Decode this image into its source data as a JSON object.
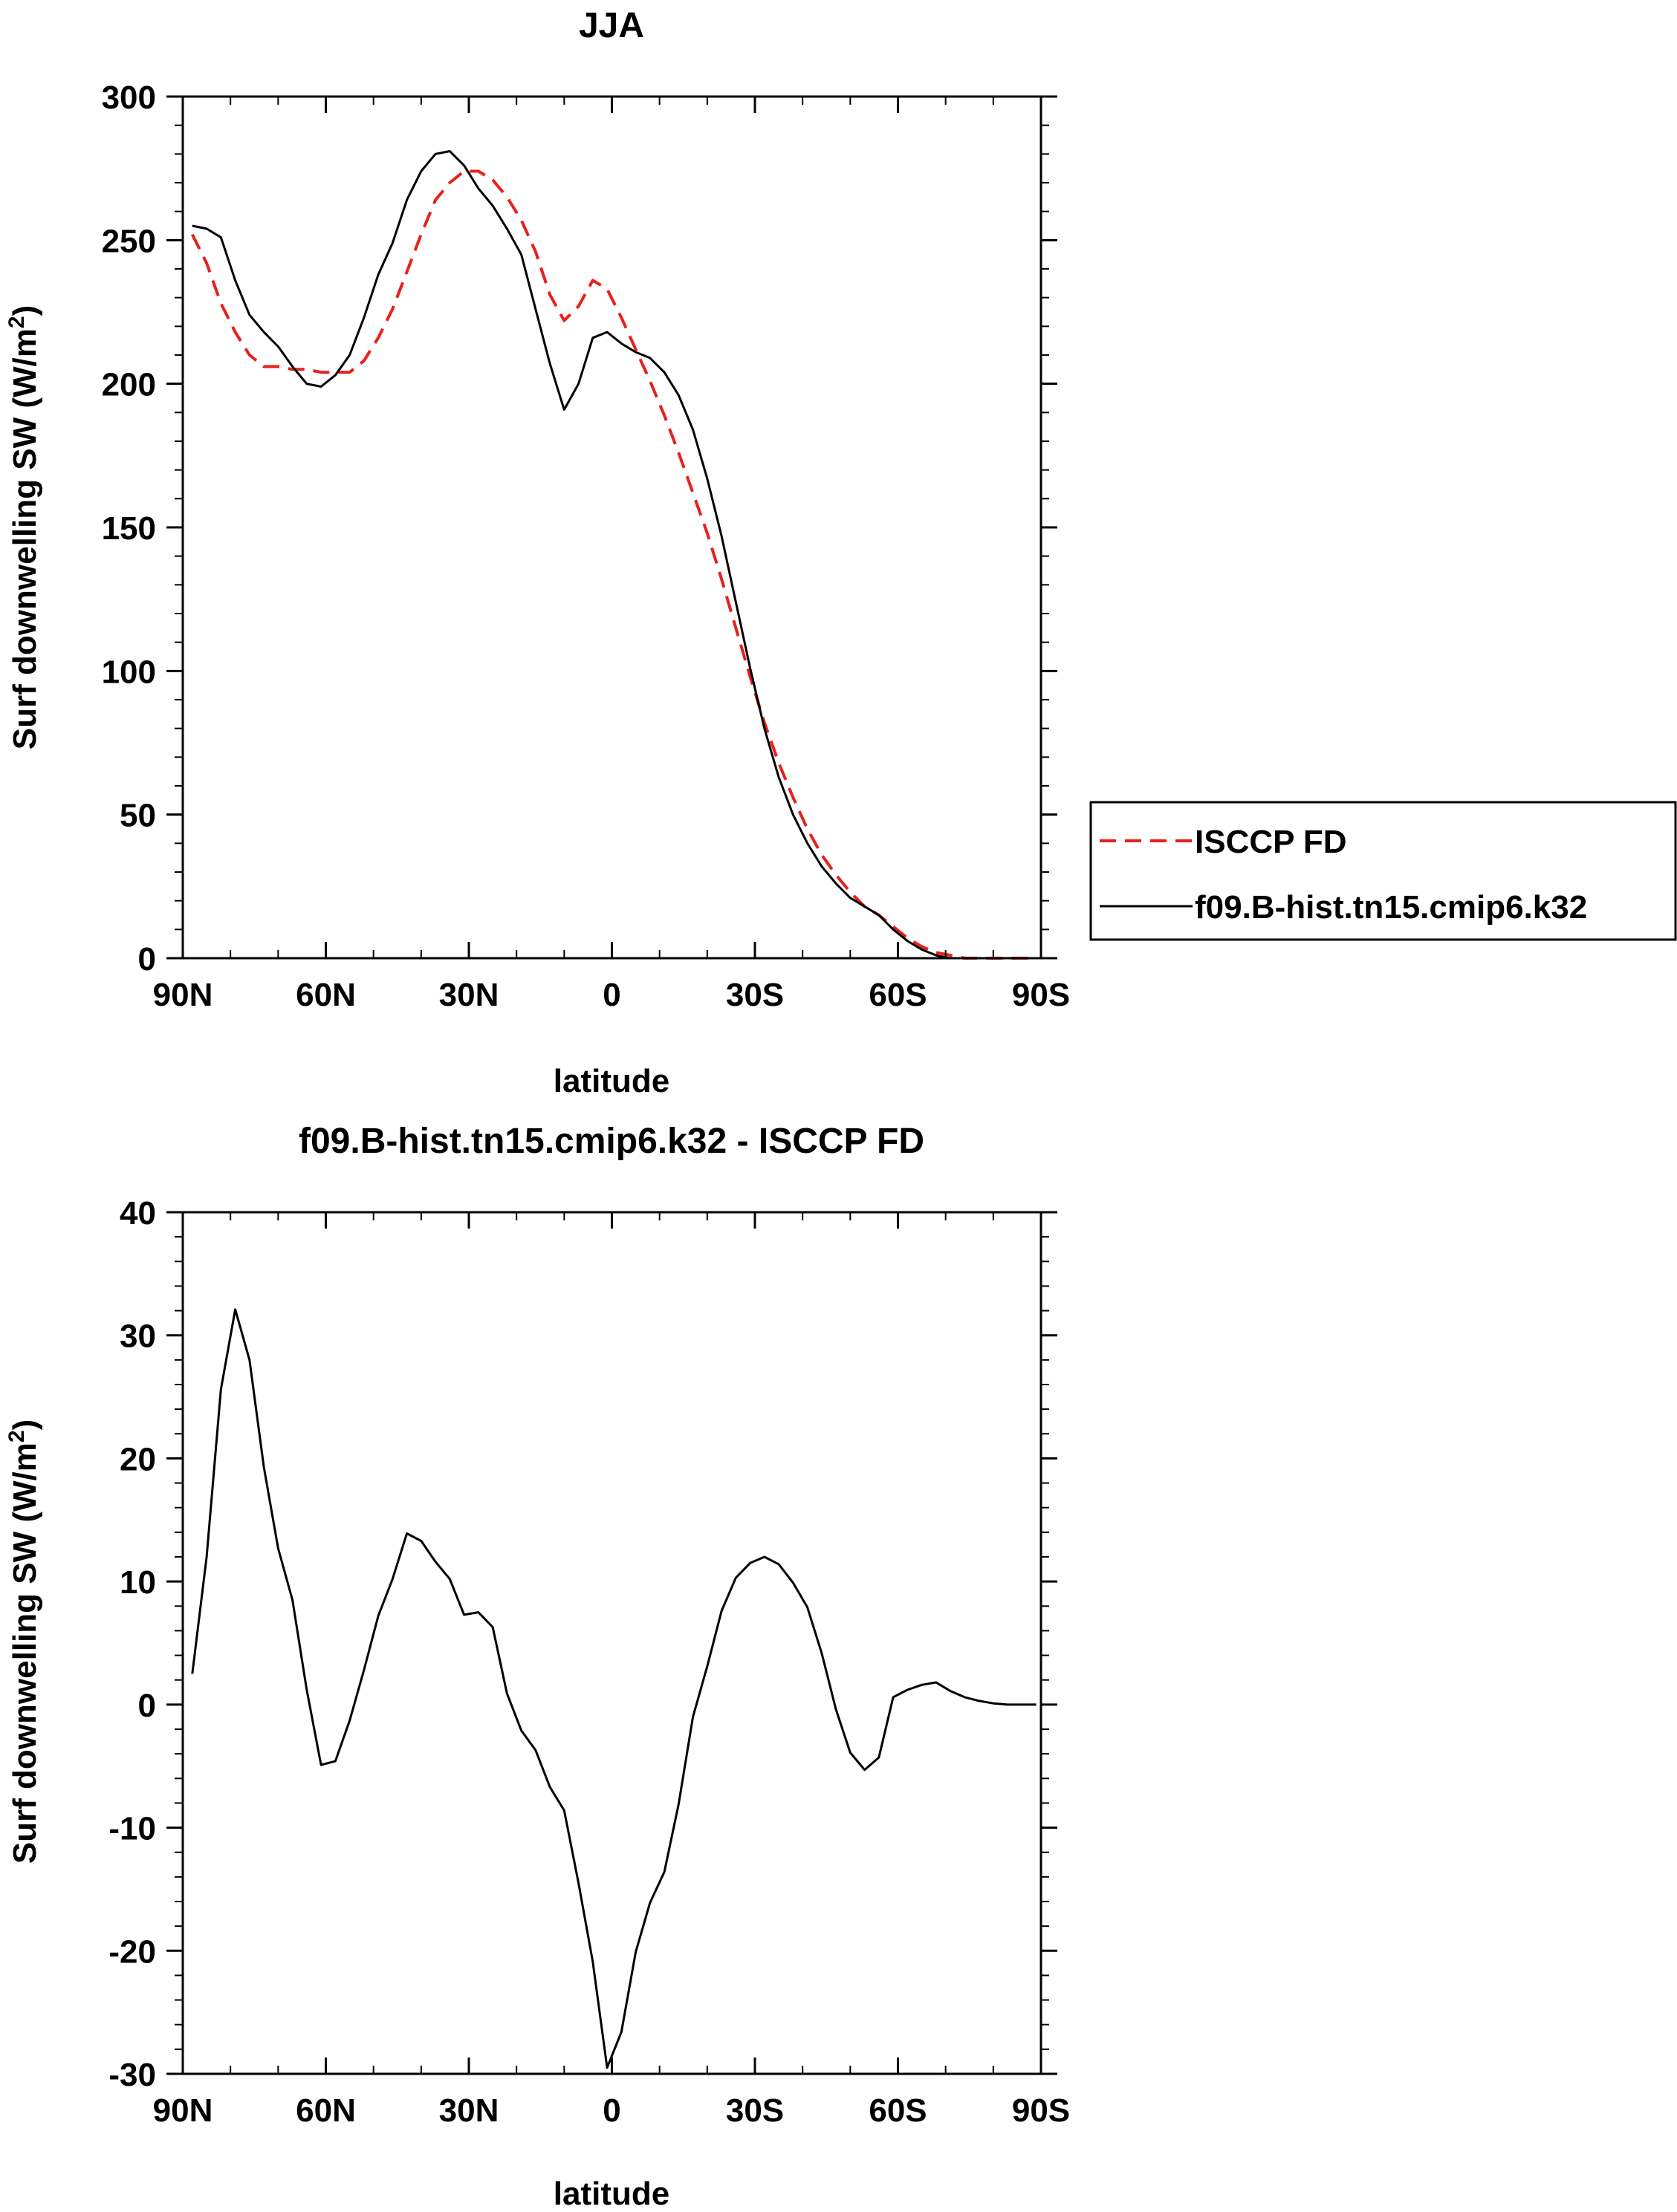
{
  "chart_data": [
    {
      "type": "line",
      "title": "JJA",
      "xlabel": "latitude",
      "ylabel": "Surf downwelling SW (W/m",
      "ylabel_sup": "2",
      "ylabel_tail": ")",
      "xlim": [
        90,
        -90
      ],
      "ylim": [
        0,
        300
      ],
      "xticks": [
        90,
        60,
        30,
        0,
        -30,
        -60,
        -90
      ],
      "xtick_labels": [
        "90N",
        "60N",
        "30N",
        "0",
        "30S",
        "60S",
        "90S"
      ],
      "yticks": [
        0,
        50,
        100,
        150,
        200,
        250,
        300
      ],
      "ytick_labels": [
        "0",
        "50",
        "100",
        "150",
        "200",
        "250",
        "300"
      ],
      "legend": "right",
      "series": [
        {
          "name": "ISCCP FD",
          "color": "#e8201c",
          "dash": "dashed",
          "x": [
            88,
            85,
            82,
            79,
            76,
            73,
            70,
            67,
            64,
            61,
            58,
            55,
            52,
            49,
            46,
            43,
            40,
            37,
            34,
            31,
            28,
            25,
            22,
            19,
            16,
            13,
            10,
            7,
            4,
            1,
            -2,
            -5,
            -8,
            -11,
            -14,
            -17,
            -20,
            -23,
            -26,
            -29,
            -32,
            -35,
            -38,
            -41,
            -44,
            -47,
            -50,
            -53,
            -56,
            -59,
            -62,
            -65,
            -68,
            -71,
            -74,
            -77,
            -80,
            -83,
            -86,
            -89
          ],
          "y": [
            252,
            242,
            228,
            218,
            210,
            206,
            206,
            205,
            205,
            204,
            204,
            204,
            208,
            216,
            226,
            239,
            252,
            264,
            270,
            274,
            274,
            271,
            265,
            257,
            246,
            231,
            222,
            227,
            236,
            233,
            223,
            212,
            201,
            189,
            176,
            162,
            148,
            132,
            115,
            98,
            82,
            68,
            56,
            45,
            36,
            29,
            23,
            18,
            15,
            11,
            7,
            4,
            2,
            1,
            0,
            0,
            0,
            0,
            0,
            0
          ]
        },
        {
          "name": "f09.B-hist.tn15.cmip6.k32",
          "color": "#000000",
          "dash": "solid",
          "x": [
            88,
            85,
            82,
            79,
            76,
            73,
            70,
            67,
            64,
            61,
            58,
            55,
            52,
            49,
            46,
            43,
            40,
            37,
            34,
            31,
            28,
            25,
            22,
            19,
            16,
            13,
            10,
            7,
            4,
            1,
            -2,
            -5,
            -8,
            -11,
            -14,
            -17,
            -20,
            -23,
            -26,
            -29,
            -32,
            -35,
            -38,
            -41,
            -44,
            -47,
            -50,
            -53,
            -56,
            -59,
            -62,
            -65,
            -68,
            -71,
            -74,
            -77,
            -80,
            -83,
            -86,
            -89
          ],
          "y": [
            255,
            254,
            251,
            236,
            224,
            218,
            213,
            206,
            200,
            199,
            203,
            210,
            223,
            238,
            249,
            264,
            274,
            280,
            281,
            276,
            268,
            262,
            254,
            245,
            226,
            207,
            191,
            200,
            216,
            218,
            214,
            211,
            209,
            204,
            196,
            184,
            167,
            147,
            124,
            101,
            80,
            63,
            50,
            40,
            32,
            26,
            21,
            18,
            15,
            10,
            6,
            3,
            1,
            0,
            0,
            0,
            0,
            0,
            0,
            0
          ]
        }
      ]
    },
    {
      "type": "line",
      "title": "f09.B-hist.tn15.cmip6.k32 - ISCCP FD",
      "xlabel": "latitude",
      "ylabel": "Surf downwelling SW (W/m",
      "ylabel_sup": "2",
      "ylabel_tail": ")",
      "xlim": [
        90,
        -90
      ],
      "ylim": [
        -30,
        40
      ],
      "xticks": [
        90,
        60,
        30,
        0,
        -30,
        -60,
        -90
      ],
      "xtick_labels": [
        "90N",
        "60N",
        "30N",
        "0",
        "30S",
        "60S",
        "90S"
      ],
      "yticks": [
        -30,
        -20,
        -10,
        0,
        10,
        20,
        30,
        40
      ],
      "ytick_labels": [
        "-30",
        "-20",
        "-10",
        "0",
        "10",
        "20",
        "30",
        "40"
      ],
      "series": [
        {
          "name": "",
          "color": "#000000",
          "dash": "solid",
          "x": [
            88,
            85,
            82,
            79,
            76,
            73,
            70,
            67,
            64,
            61,
            58,
            55,
            52,
            49,
            46,
            43,
            40,
            37,
            34,
            31,
            28,
            25,
            22,
            19,
            16,
            13,
            10,
            7,
            4,
            1,
            -2,
            -5,
            -8,
            -11,
            -14,
            -17,
            -20,
            -23,
            -26,
            -29,
            -32,
            -35,
            -38,
            -41,
            -44,
            -47,
            -50,
            -53,
            -56,
            -59,
            -62,
            -65,
            -68,
            -71,
            -74,
            -77,
            -80,
            -83,
            -86,
            -89
          ],
          "y": [
            2.5,
            12,
            25.6,
            32.1,
            28,
            19.3,
            12.7,
            8.5,
            1.2,
            -4.9,
            -4.6,
            -1.3,
            2.8,
            7.2,
            10.2,
            13.9,
            13.3,
            11.6,
            10.2,
            7.3,
            7.5,
            6.3,
            0.9,
            -2.1,
            -3.7,
            -6.7,
            -8.6,
            -14.5,
            -20.9,
            -29.5,
            -26.6,
            -20.1,
            -16.1,
            -13.6,
            -8.1,
            -1,
            3.1,
            7.6,
            10.3,
            11.5,
            12,
            11.4,
            9.9,
            7.9,
            4.2,
            -0.4,
            -3.9,
            -5.3,
            -4.3,
            0.6,
            1.2,
            1.6,
            1.8,
            1.1,
            0.6,
            0.3,
            0.1,
            0,
            0,
            0
          ]
        }
      ]
    }
  ]
}
